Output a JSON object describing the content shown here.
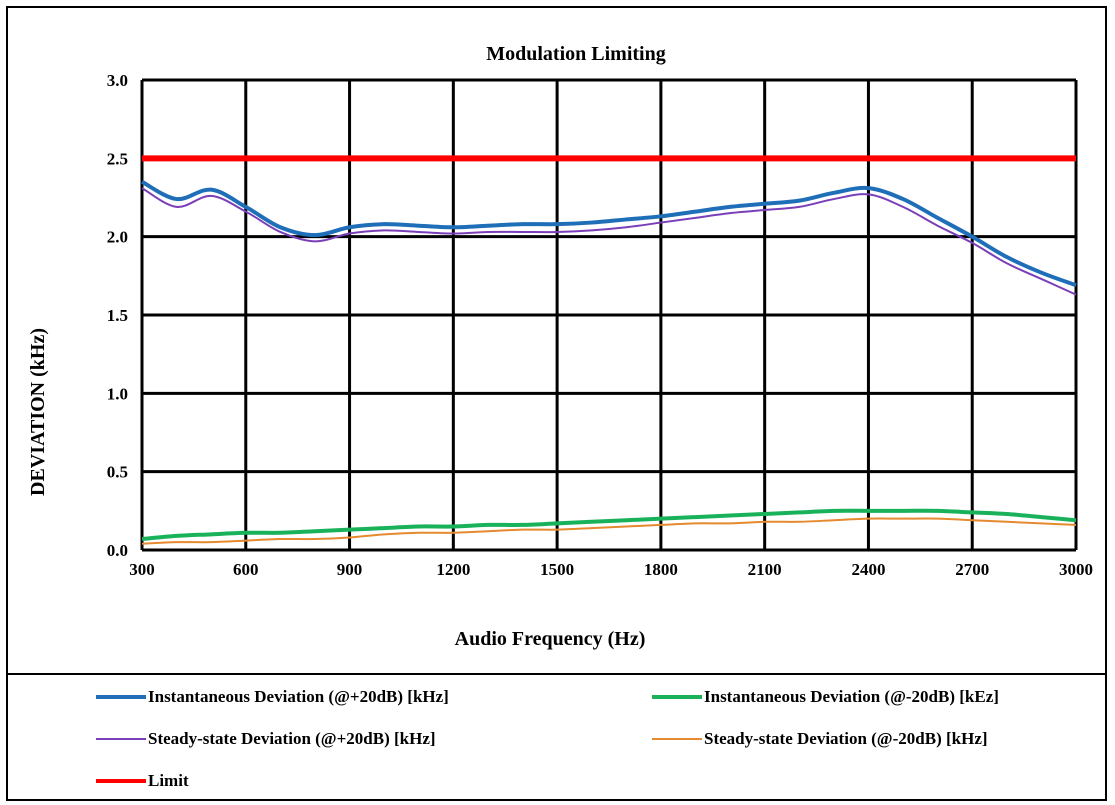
{
  "chart_data": {
    "type": "line",
    "title": "Modulation Limiting",
    "xlabel": "Audio Frequency (Hz)",
    "ylabel": "DEVIATION (kHz)",
    "xlim": [
      300,
      3000
    ],
    "ylim": [
      0,
      3
    ],
    "x_ticks": [
      "300",
      "600",
      "900",
      "1200",
      "1500",
      "1800",
      "2100",
      "2400",
      "2700",
      "3000"
    ],
    "y_ticks": [
      "0.0",
      "0.5",
      "1.0",
      "1.5",
      "2.0",
      "2.5",
      "3.0"
    ],
    "grid": true,
    "legend_position": "bottom",
    "x": [
      300,
      400,
      500,
      600,
      700,
      800,
      900,
      1000,
      1100,
      1200,
      1300,
      1400,
      1500,
      1600,
      1700,
      1800,
      1900,
      2000,
      2100,
      2200,
      2300,
      2400,
      2500,
      2600,
      2700,
      2800,
      2900,
      3000
    ],
    "series": [
      {
        "name": "Instantaneous Deviation (@+20dB) [kHz]",
        "color": "#1f6eb8",
        "values": [
          2.35,
          2.24,
          2.3,
          2.19,
          2.06,
          2.01,
          2.06,
          2.08,
          2.07,
          2.06,
          2.07,
          2.08,
          2.08,
          2.09,
          2.11,
          2.13,
          2.16,
          2.19,
          2.21,
          2.23,
          2.28,
          2.31,
          2.24,
          2.12,
          2.0,
          1.87,
          1.77,
          1.69
        ]
      },
      {
        "name": "Instantaneous Deviation (@-20dB) [kHz]",
        "color": "#19b25a",
        "values": [
          0.07,
          0.09,
          0.1,
          0.11,
          0.11,
          0.12,
          0.13,
          0.14,
          0.15,
          0.15,
          0.16,
          0.16,
          0.17,
          0.18,
          0.19,
          0.2,
          0.21,
          0.22,
          0.23,
          0.24,
          0.25,
          0.25,
          0.25,
          0.25,
          0.24,
          0.23,
          0.21,
          0.19
        ]
      },
      {
        "name": "Steady-state Deviation (@+20dB) [kHz]",
        "color": "#7a3fb8",
        "values": [
          2.31,
          2.19,
          2.26,
          2.16,
          2.03,
          1.97,
          2.02,
          2.04,
          2.03,
          2.02,
          2.03,
          2.03,
          2.03,
          2.04,
          2.06,
          2.09,
          2.12,
          2.15,
          2.17,
          2.19,
          2.24,
          2.27,
          2.19,
          2.07,
          1.96,
          1.83,
          1.73,
          1.63
        ]
      },
      {
        "name": "Steady-state Deviation (@-20dB) [kHz]",
        "color": "#e58a2e",
        "values": [
          0.04,
          0.05,
          0.05,
          0.06,
          0.07,
          0.07,
          0.08,
          0.1,
          0.11,
          0.11,
          0.12,
          0.13,
          0.13,
          0.14,
          0.15,
          0.16,
          0.17,
          0.17,
          0.18,
          0.18,
          0.19,
          0.2,
          0.2,
          0.2,
          0.19,
          0.18,
          0.17,
          0.16
        ]
      },
      {
        "name": "Limit",
        "color": "#ff0000",
        "values": [
          2.5,
          2.5,
          2.5,
          2.5,
          2.5,
          2.5,
          2.5,
          2.5,
          2.5,
          2.5,
          2.5,
          2.5,
          2.5,
          2.5,
          2.5,
          2.5,
          2.5,
          2.5,
          2.5,
          2.5,
          2.5,
          2.5,
          2.5,
          2.5,
          2.5,
          2.5,
          2.5,
          2.5
        ]
      }
    ]
  },
  "legend": {
    "items": [
      {
        "label": "Instantaneous Deviation (@+20dB) [kHz]",
        "color": "#1f6eb8"
      },
      {
        "label": "Instantaneous Deviation (@-20dB) [kEz]",
        "color": "#19b25a"
      },
      {
        "label": "Steady-state Deviation (@+20dB) [kHz]",
        "color": "#7a3fb8"
      },
      {
        "label": "Steady-state Deviation (@-20dB) [kHz]",
        "color": "#e58a2e"
      },
      {
        "label": "Limit",
        "color": "#ff0000"
      }
    ]
  }
}
